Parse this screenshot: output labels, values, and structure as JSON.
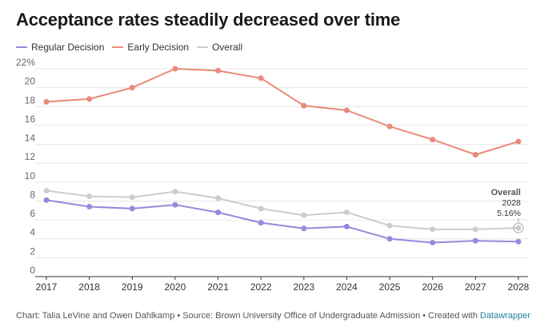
{
  "title": "Acceptance rates steadily decreased over time",
  "chart_data": {
    "type": "line",
    "title": "Acceptance rates steadily decreased over time",
    "xlabel": "",
    "ylabel": "",
    "x": [
      "2017",
      "2018",
      "2019",
      "2020",
      "2021",
      "2022",
      "2023",
      "2024",
      "2025",
      "2026",
      "2027",
      "2028"
    ],
    "ylim": [
      0,
      22
    ],
    "yticks": [
      0,
      2,
      4,
      6,
      8,
      10,
      12,
      14,
      16,
      18,
      20,
      22
    ],
    "ytick_labels": [
      "0",
      "2",
      "4",
      "6",
      "8",
      "10",
      "12",
      "14",
      "16",
      "18",
      "20",
      "22%"
    ],
    "grid": true,
    "legend_position": "top-left",
    "series": [
      {
        "name": "Regular Decision",
        "color": "#9a87dd",
        "values": [
          8.1,
          7.4,
          7.2,
          7.6,
          6.8,
          5.7,
          5.1,
          5.3,
          4.0,
          3.6,
          3.8,
          3.7
        ]
      },
      {
        "name": "Early Decision",
        "color": "#e98a7a",
        "values": [
          18.5,
          18.8,
          20.0,
          22.0,
          21.8,
          21.0,
          18.1,
          17.6,
          15.9,
          14.5,
          12.9,
          14.3
        ]
      },
      {
        "name": "Overall",
        "color": "#cccccc",
        "values": [
          9.1,
          8.5,
          8.4,
          9.0,
          8.3,
          7.2,
          6.5,
          6.8,
          5.4,
          5.0,
          5.0,
          5.16
        ]
      }
    ],
    "annotations": [
      {
        "series": "Overall",
        "x": "2028",
        "label": "Overall",
        "year": "2028",
        "value": "5.16%"
      }
    ]
  },
  "footer": {
    "text": "Chart: Talia LeVine and Owen Dahlkamp • Source: Brown University Office of Undergraduate Admission • Created with ",
    "tool": "Datawrapper"
  }
}
